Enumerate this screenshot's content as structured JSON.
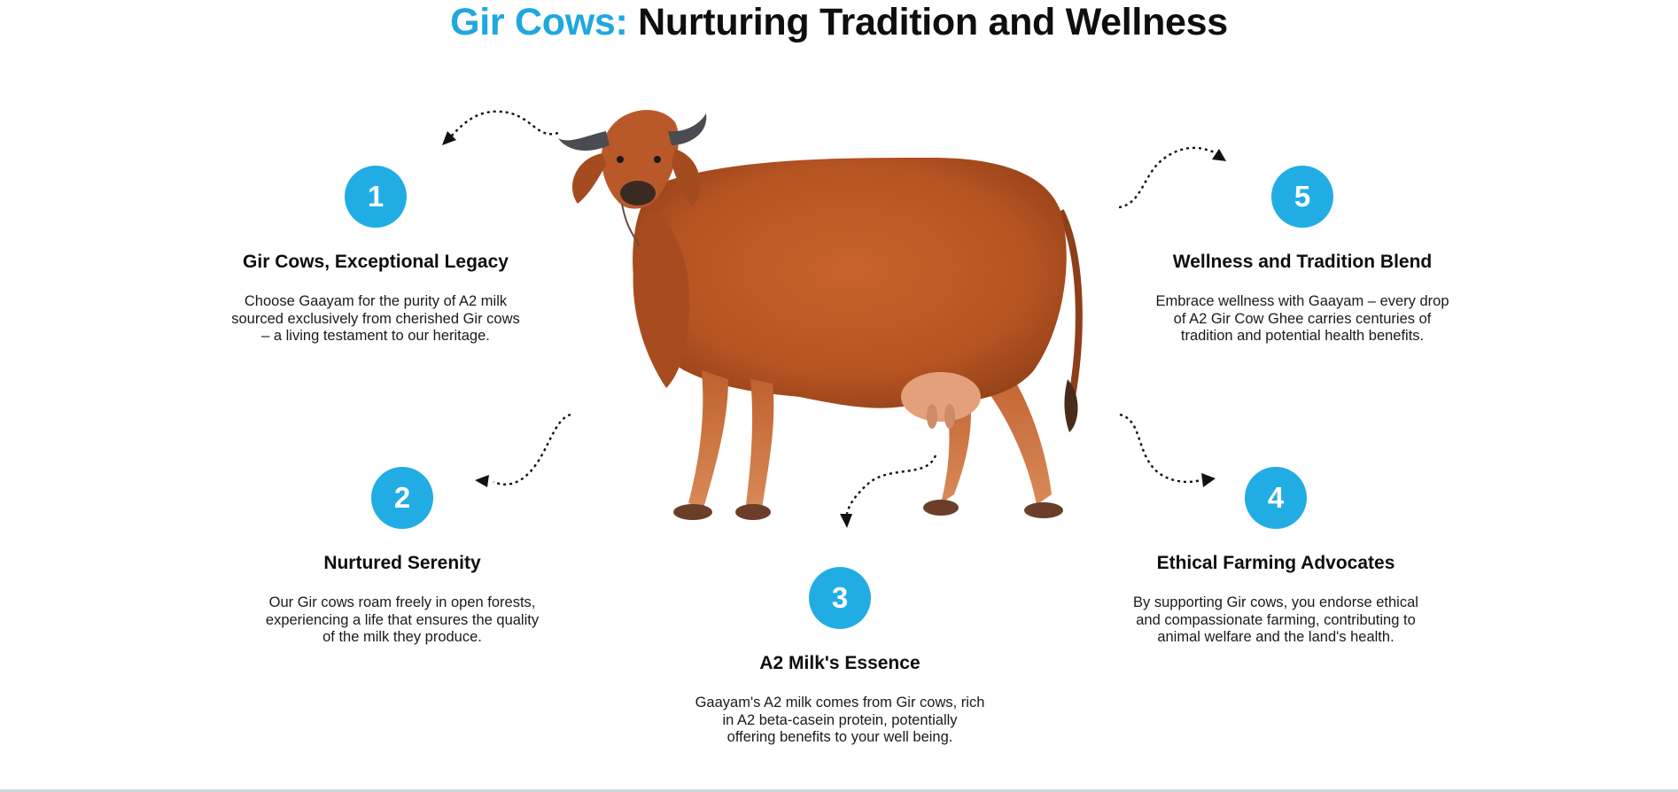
{
  "header": {
    "title_accent": "Gir Cows:",
    "title_rest": "Nurturing Tradition and Wellness"
  },
  "features": [
    {
      "number": "1",
      "title": "Gir Cows, Exceptional Legacy",
      "desc_lines": [
        "Choose Gaayam for the purity of A2 milk",
        "sourced exclusively from cherished Gir cows",
        "– a living testament to our heritage."
      ]
    },
    {
      "number": "2",
      "title": "Nurtured Serenity",
      "desc_lines": [
        "Our Gir cows roam freely in open forests,",
        "experiencing a life that ensures the quality",
        "of the milk they produce."
      ]
    },
    {
      "number": "3",
      "title": "A2 Milk's Essence",
      "desc_lines": [
        "Gaayam's A2 milk comes from Gir cows, rich",
        "in A2 beta-casein protein, potentially",
        "offering benefits to your well being."
      ]
    },
    {
      "number": "4",
      "title": "Ethical Farming Advocates",
      "desc_lines": [
        "By supporting Gir cows, you endorse ethical",
        "and compassionate farming, contributing to",
        "animal welfare and the land's health."
      ]
    },
    {
      "number": "5",
      "title": "Wellness and Tradition Blend",
      "desc_lines": [
        "Embrace wellness with Gaayam – every drop",
        "of A2 Gir Cow Ghee carries centuries of",
        "tradition and potential health benefits."
      ]
    }
  ],
  "colors": {
    "accent": "#1fa8de",
    "badge": "#21ade4",
    "text": "#0e0e0e"
  },
  "icons": {
    "center_image": "gir-cow-image",
    "arrows": "curved-dotted-arrow-icon"
  }
}
